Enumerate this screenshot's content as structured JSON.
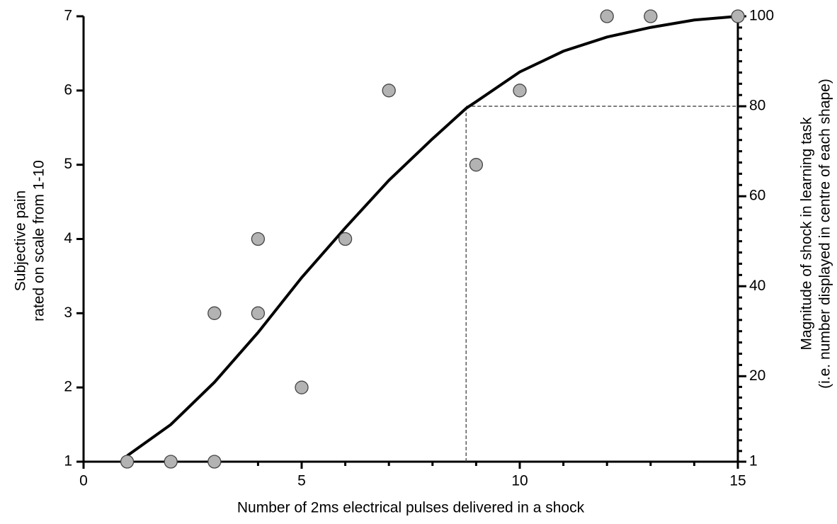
{
  "chart_data": {
    "type": "scatter",
    "xlabel": "Number of 2ms electrical pulses delivered in a shock",
    "ylabel": [
      "Subjective pain",
      "rated on scale from 1-10"
    ],
    "y2label": [
      "Magnitude of shock in learning task",
      "(i.e. number displayed in centre of each shape)"
    ],
    "xlim": [
      0,
      15
    ],
    "xticks": [
      0,
      5,
      10,
      15
    ],
    "ylim": [
      1,
      7
    ],
    "yticks": [
      1,
      2,
      3,
      4,
      5,
      6,
      7
    ],
    "y2lim": [
      1,
      100
    ],
    "y2ticks": [
      1,
      20,
      40,
      60,
      80,
      100
    ],
    "series": [
      {
        "type": "scatter",
        "color": "#b3b3b3",
        "x": [
          1,
          2,
          3,
          3,
          4,
          4,
          5,
          6,
          7,
          9,
          10,
          12,
          13,
          15
        ],
        "values": [
          1,
          1,
          1,
          3,
          4,
          3,
          2,
          4,
          6,
          5,
          6,
          7,
          7,
          7
        ]
      },
      {
        "type": "line",
        "color": "#000000",
        "x": [
          1,
          2,
          3,
          4,
          5,
          6,
          7,
          8,
          8.77,
          9,
          10,
          11,
          12,
          13,
          14,
          15
        ],
        "values": [
          1.08,
          1.5,
          2.07,
          2.74,
          3.48,
          4.15,
          4.79,
          5.35,
          5.76,
          5.85,
          6.25,
          6.53,
          6.72,
          6.85,
          6.95,
          7.0
        ]
      }
    ],
    "reference": {
      "x": 8.77,
      "y2": 80
    }
  }
}
